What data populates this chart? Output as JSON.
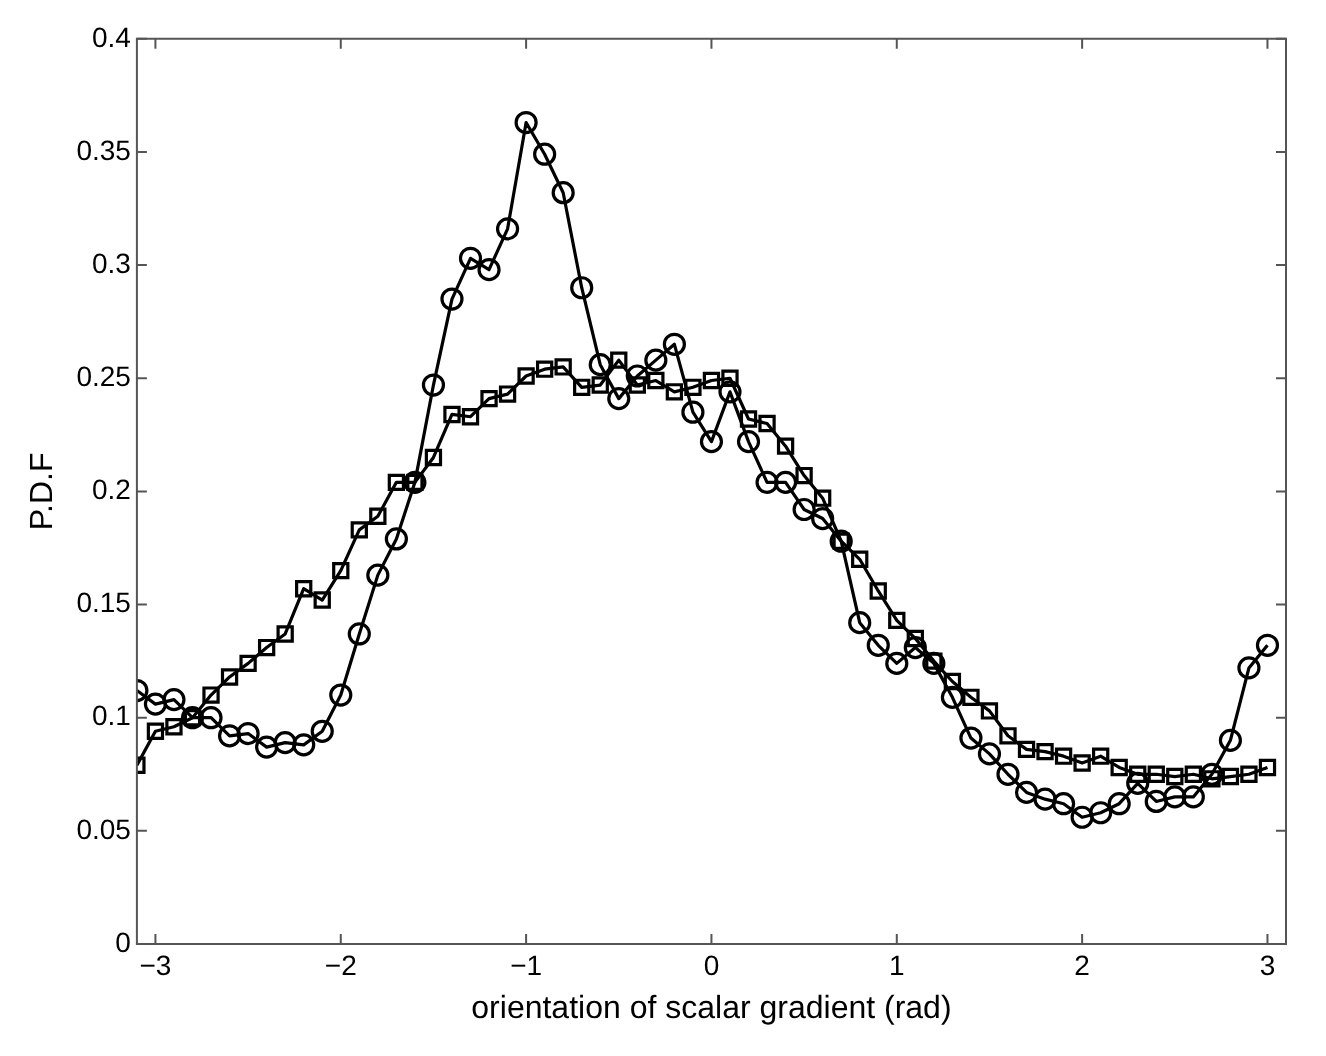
{
  "chart_data": {
    "type": "line",
    "xlabel": "orientation of scalar gradient (rad)",
    "ylabel": "P.D.F",
    "x": [
      -3.1,
      -3.0,
      -2.9,
      -2.8,
      -2.7,
      -2.6,
      -2.5,
      -2.4,
      -2.3,
      -2.2,
      -2.1,
      -2.0,
      -1.9,
      -1.8,
      -1.7,
      -1.6,
      -1.5,
      -1.4,
      -1.3,
      -1.2,
      -1.1,
      -1.0,
      -0.9,
      -0.8,
      -0.7,
      -0.6,
      -0.5,
      -0.4,
      -0.3,
      -0.2,
      -0.1,
      0.0,
      0.1,
      0.2,
      0.3,
      0.4,
      0.5,
      0.6,
      0.7,
      0.8,
      0.9,
      1.0,
      1.1,
      1.2,
      1.3,
      1.4,
      1.5,
      1.6,
      1.7,
      1.8,
      1.9,
      2.0,
      2.1,
      2.2,
      2.3,
      2.4,
      2.5,
      2.6,
      2.7,
      2.8,
      2.9,
      3.0
    ],
    "series": [
      {
        "color": "#000000",
        "marker": "circle",
        "values": [
          0.112,
          0.106,
          0.108,
          0.1,
          0.1,
          0.092,
          0.093,
          0.087,
          0.089,
          0.088,
          0.094,
          0.11,
          0.137,
          0.163,
          0.179,
          0.204,
          0.247,
          0.285,
          0.303,
          0.298,
          0.316,
          0.363,
          0.349,
          0.332,
          0.29,
          0.256,
          0.241,
          0.251,
          0.258,
          0.265,
          0.235,
          0.222,
          0.244,
          0.222,
          0.204,
          0.204,
          0.192,
          0.188,
          0.178,
          0.142,
          0.132,
          0.124,
          0.131,
          0.124,
          0.109,
          0.091,
          0.084,
          0.075,
          0.067,
          0.064,
          0.062,
          0.056,
          0.058,
          0.062,
          0.071,
          0.063,
          0.065,
          0.065,
          0.075,
          0.09,
          0.122,
          0.132
        ]
      },
      {
        "color": "#000000",
        "marker": "square",
        "values": [
          0.079,
          0.094,
          0.096,
          0.1,
          0.11,
          0.118,
          0.124,
          0.131,
          0.137,
          0.157,
          0.152,
          0.165,
          0.183,
          0.189,
          0.204,
          0.204,
          0.215,
          0.234,
          0.233,
          0.241,
          0.243,
          0.251,
          0.254,
          0.255,
          0.246,
          0.247,
          0.258,
          0.247,
          0.249,
          0.244,
          0.246,
          0.249,
          0.25,
          0.232,
          0.23,
          0.22,
          0.207,
          0.197,
          0.178,
          0.17,
          0.156,
          0.143,
          0.135,
          0.125,
          0.116,
          0.109,
          0.103,
          0.092,
          0.086,
          0.085,
          0.083,
          0.08,
          0.083,
          0.078,
          0.075,
          0.075,
          0.074,
          0.075,
          0.073,
          0.074,
          0.075,
          0.078
        ]
      }
    ],
    "xlim": [
      -3.1,
      3.1
    ],
    "xticks": [
      -3,
      -2,
      -1,
      0,
      1,
      2,
      3
    ],
    "ylim": [
      0,
      0.4
    ],
    "yticks": [
      0,
      0.05,
      0.1,
      0.15,
      0.2,
      0.25,
      0.3,
      0.35,
      0.4
    ],
    "grid": false,
    "legend": false,
    "line_style": "solid"
  }
}
